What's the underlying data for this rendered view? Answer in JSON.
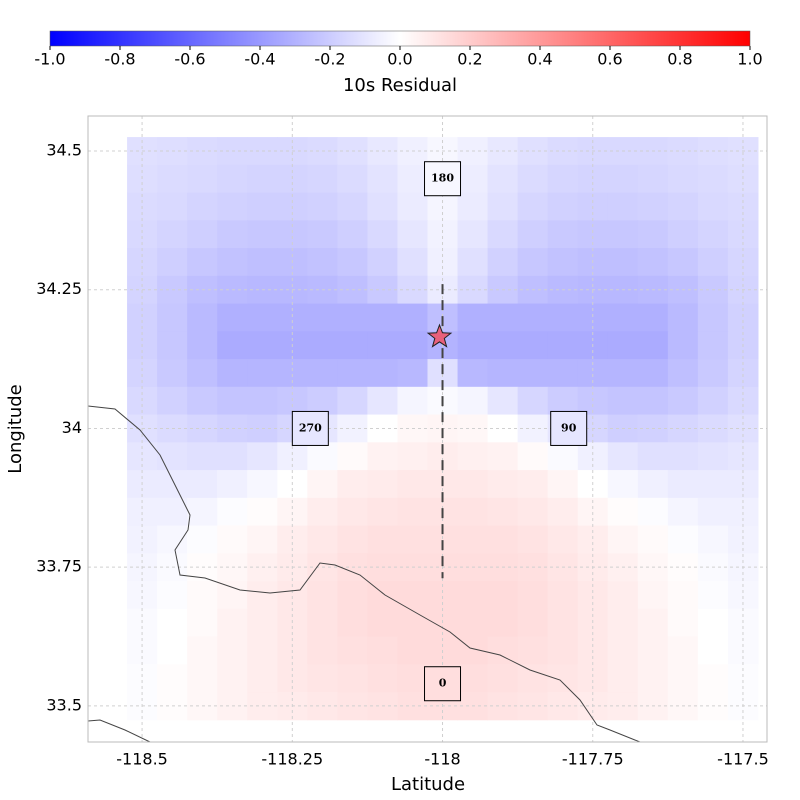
{
  "chart_data": {
    "type": "heatmap",
    "x_label": "Latitude",
    "y_label": "Longitude",
    "colorbar_label": "10s Residual",
    "colormap": "bwr",
    "clim": [
      -1,
      1
    ],
    "colorbar_ticks": [
      {
        "value": -1,
        "label": "-1.0"
      },
      -0.8,
      -0.6,
      -0.4,
      -0.2,
      {
        "value": 0,
        "label": "0.0"
      },
      0.2,
      0.4,
      0.6,
      0.8,
      {
        "value": 1,
        "label": "1.0"
      }
    ],
    "xlim": [
      -118.59,
      -117.46
    ],
    "ylim": [
      33.435,
      34.563
    ],
    "xticks": [
      -118.5,
      -118.25,
      -118,
      -117.75,
      -117.5
    ],
    "yticks": [
      33.5,
      33.75,
      34,
      34.25,
      34.5
    ],
    "grid": true,
    "x": [
      -118.5,
      -118.45,
      -118.4,
      -118.35,
      -118.3,
      -118.25,
      -118.2,
      -118.15,
      -118.1,
      -118.05,
      -118,
      -117.95,
      -117.9,
      -117.85,
      -117.8,
      -117.75,
      -117.7,
      -117.65,
      -117.6,
      -117.55,
      -117.5
    ],
    "y": [
      34.5,
      34.45,
      34.4,
      34.35,
      34.3,
      34.25,
      34.2,
      34.15,
      34.1,
      34.05,
      34,
      33.95,
      33.9,
      33.85,
      33.8,
      33.75,
      33.7,
      33.65,
      33.6,
      33.55,
      33.5
    ],
    "values": [
      [
        -0.12,
        -0.13,
        -0.14,
        -0.15,
        -0.15,
        -0.15,
        -0.14,
        -0.12,
        -0.09,
        -0.06,
        -0.03,
        -0.06,
        -0.09,
        -0.12,
        -0.14,
        -0.15,
        -0.15,
        -0.15,
        -0.14,
        -0.13,
        -0.12
      ],
      [
        -0.13,
        -0.14,
        -0.15,
        -0.16,
        -0.17,
        -0.17,
        -0.16,
        -0.14,
        -0.11,
        -0.07,
        -0.03,
        -0.07,
        -0.11,
        -0.14,
        -0.16,
        -0.17,
        -0.17,
        -0.16,
        -0.15,
        -0.14,
        -0.13
      ],
      [
        -0.14,
        -0.15,
        -0.17,
        -0.18,
        -0.19,
        -0.19,
        -0.18,
        -0.16,
        -0.12,
        -0.08,
        -0.04,
        -0.08,
        -0.12,
        -0.16,
        -0.18,
        -0.19,
        -0.19,
        -0.18,
        -0.17,
        -0.15,
        -0.14
      ],
      [
        -0.15,
        -0.17,
        -0.19,
        -0.21,
        -0.22,
        -0.22,
        -0.21,
        -0.19,
        -0.15,
        -0.1,
        -0.05,
        -0.1,
        -0.15,
        -0.19,
        -0.21,
        -0.22,
        -0.22,
        -0.21,
        -0.19,
        -0.17,
        -0.15
      ],
      [
        -0.16,
        -0.19,
        -0.22,
        -0.24,
        -0.25,
        -0.25,
        -0.24,
        -0.22,
        -0.18,
        -0.12,
        -0.06,
        -0.12,
        -0.18,
        -0.22,
        -0.24,
        -0.25,
        -0.25,
        -0.24,
        -0.22,
        -0.19,
        -0.16
      ],
      [
        -0.17,
        -0.21,
        -0.25,
        -0.27,
        -0.28,
        -0.28,
        -0.27,
        -0.25,
        -0.21,
        -0.15,
        -0.08,
        -0.15,
        -0.21,
        -0.25,
        -0.27,
        -0.28,
        -0.28,
        -0.27,
        -0.25,
        -0.21,
        -0.17
      ],
      [
        -0.18,
        -0.22,
        -0.27,
        -0.31,
        -0.31,
        -0.31,
        -0.31,
        -0.31,
        -0.31,
        -0.31,
        -0.25,
        -0.31,
        -0.31,
        -0.31,
        -0.31,
        -0.31,
        -0.31,
        -0.31,
        -0.27,
        -0.22,
        -0.18
      ],
      [
        -0.18,
        -0.22,
        -0.27,
        -0.33,
        -0.33,
        -0.33,
        -0.33,
        -0.33,
        -0.33,
        -0.33,
        -0.3,
        -0.33,
        -0.33,
        -0.33,
        -0.33,
        -0.33,
        -0.33,
        -0.33,
        -0.27,
        -0.22,
        -0.18
      ],
      [
        -0.17,
        -0.21,
        -0.25,
        -0.29,
        -0.29,
        -0.29,
        -0.29,
        -0.29,
        -0.29,
        -0.28,
        -0.12,
        -0.28,
        -0.29,
        -0.29,
        -0.29,
        -0.29,
        -0.29,
        -0.29,
        -0.25,
        -0.21,
        -0.17
      ],
      [
        -0.15,
        -0.18,
        -0.21,
        -0.23,
        -0.23,
        -0.22,
        -0.2,
        -0.16,
        -0.1,
        -0.04,
        -0.02,
        -0.04,
        -0.1,
        -0.16,
        -0.2,
        -0.22,
        -0.23,
        -0.23,
        -0.21,
        -0.18,
        -0.15
      ],
      [
        -0.12,
        -0.14,
        -0.16,
        -0.18,
        -0.19,
        -0.16,
        -0.1,
        -0.05,
        0.0,
        0.03,
        0.04,
        0.03,
        0.0,
        -0.05,
        -0.1,
        -0.16,
        -0.19,
        -0.18,
        -0.16,
        -0.14,
        -0.12
      ],
      [
        -0.1,
        -0.11,
        -0.12,
        -0.12,
        -0.1,
        -0.06,
        -0.02,
        0.02,
        0.05,
        0.06,
        0.07,
        0.06,
        0.05,
        0.02,
        -0.02,
        -0.06,
        -0.1,
        -0.12,
        -0.12,
        -0.11,
        -0.1
      ],
      [
        -0.08,
        -0.08,
        -0.08,
        -0.06,
        -0.03,
        0.0,
        0.04,
        0.07,
        0.08,
        0.09,
        0.09,
        0.09,
        0.08,
        0.07,
        0.04,
        0.0,
        -0.03,
        -0.06,
        -0.08,
        -0.08,
        -0.08
      ],
      [
        -0.06,
        -0.06,
        -0.04,
        -0.01,
        0.01,
        0.04,
        0.07,
        0.09,
        0.1,
        0.11,
        0.11,
        0.11,
        0.1,
        0.09,
        0.07,
        0.04,
        0.01,
        -0.01,
        -0.04,
        -0.06,
        -0.06
      ],
      [
        -0.05,
        -0.03,
        -0.01,
        0.02,
        0.04,
        0.07,
        0.09,
        0.11,
        0.12,
        0.12,
        0.12,
        0.12,
        0.12,
        0.11,
        0.09,
        0.07,
        0.04,
        0.02,
        -0.01,
        -0.03,
        -0.05
      ],
      [
        -0.04,
        -0.02,
        0.01,
        0.03,
        0.06,
        0.08,
        0.1,
        0.12,
        0.13,
        0.13,
        0.13,
        0.13,
        0.13,
        0.12,
        0.1,
        0.08,
        0.06,
        0.03,
        0.01,
        -0.02,
        -0.04
      ],
      [
        -0.03,
        -0.01,
        0.02,
        0.04,
        0.07,
        0.09,
        0.11,
        0.13,
        0.14,
        0.14,
        0.14,
        0.14,
        0.14,
        0.13,
        0.11,
        0.09,
        0.07,
        0.04,
        0.02,
        -0.01,
        -0.03
      ],
      [
        -0.02,
        0.0,
        0.02,
        0.05,
        0.07,
        0.09,
        0.11,
        0.13,
        0.14,
        0.14,
        0.14,
        0.14,
        0.14,
        0.13,
        0.11,
        0.09,
        0.07,
        0.05,
        0.02,
        0.0,
        -0.02
      ],
      [
        -0.02,
        0.0,
        0.03,
        0.05,
        0.07,
        0.09,
        0.11,
        0.12,
        0.13,
        0.14,
        0.14,
        0.14,
        0.13,
        0.12,
        0.11,
        0.09,
        0.07,
        0.05,
        0.03,
        0.0,
        -0.02
      ],
      [
        -0.01,
        0.01,
        0.03,
        0.05,
        0.07,
        0.09,
        0.1,
        0.11,
        0.12,
        0.13,
        0.13,
        0.13,
        0.12,
        0.11,
        0.1,
        0.09,
        0.07,
        0.05,
        0.03,
        0.01,
        -0.01
      ],
      [
        -0.01,
        0.01,
        0.03,
        0.05,
        0.07,
        0.08,
        0.09,
        0.1,
        0.11,
        0.12,
        0.12,
        0.12,
        0.11,
        0.1,
        0.09,
        0.08,
        0.07,
        0.05,
        0.03,
        0.01,
        -0.01
      ]
    ],
    "fault": {
      "x": [
        -118,
        -118
      ],
      "y": [
        34.26,
        33.73
      ]
    },
    "epicenter": {
      "x": -118.005,
      "y": 34.165
    },
    "annotations": [
      {
        "text": "180",
        "x": -118,
        "y": 34.45
      },
      {
        "text": "270",
        "x": -118.22,
        "y": 34.0
      },
      {
        "text": "90",
        "x": -117.79,
        "y": 34.0
      },
      {
        "text": "0",
        "x": -118,
        "y": 33.54
      }
    ]
  }
}
